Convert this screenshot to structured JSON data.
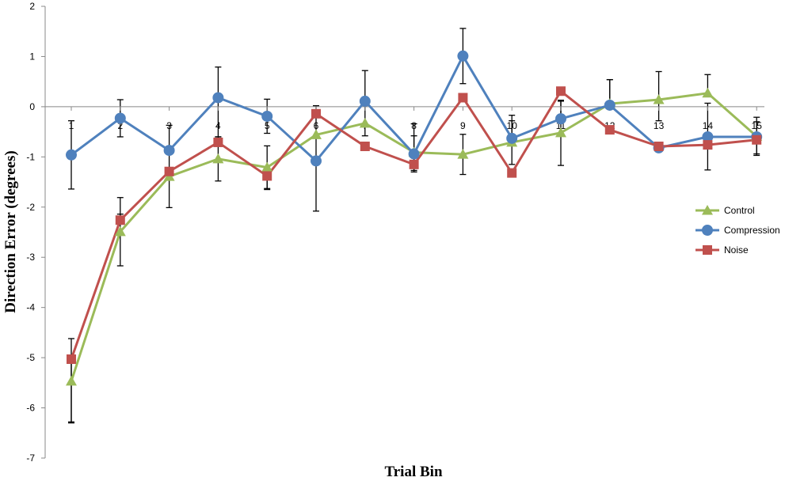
{
  "chart_data": {
    "type": "line",
    "title": "",
    "xlabel": "Trial Bin",
    "ylabel": "Direction Error (degrees)",
    "ylim": [
      -7,
      2
    ],
    "yticks": [
      2,
      1,
      0,
      -1,
      -2,
      -3,
      -4,
      -5,
      -6,
      -7
    ],
    "categories": [
      "1",
      "2",
      "3",
      "4",
      "5",
      "6",
      "7",
      "8",
      "9",
      "10",
      "11",
      "12",
      "13",
      "14",
      "15"
    ],
    "legend_position": "right",
    "grid": false,
    "series": [
      {
        "name": "Control",
        "color": "#9BBB59",
        "marker": "triangle",
        "values": [
          -5.47,
          -2.49,
          -1.39,
          -1.04,
          -1.21,
          -0.56,
          -0.33,
          -0.91,
          -0.95,
          -0.71,
          -0.52,
          0.06,
          0.14,
          0.27,
          -0.59
        ],
        "err_up": [
          0.5,
          0.35,
          0.6,
          0.44,
          0.43,
          0.58,
          0.48,
          0.57,
          0.4,
          0.43,
          0.63,
          0.48,
          0.56,
          0.37,
          0.29
        ],
        "err_down": [
          0.83,
          0.68,
          0.62,
          0.44,
          0.44,
          1.52,
          0.25,
          0.36,
          0.4,
          0.44,
          0.65,
          0.08,
          0.42,
          0.0,
          0.38
        ]
      },
      {
        "name": "Compression",
        "color": "#4F81BD",
        "marker": "circle",
        "values": [
          -0.96,
          -0.23,
          -0.87,
          0.18,
          -0.19,
          -1.08,
          0.11,
          -0.94,
          1.01,
          -0.63,
          -0.24,
          0.03,
          -0.82,
          -0.6,
          -0.6
        ],
        "err_up": [
          0.68,
          0.37,
          0.5,
          0.61,
          0.34,
          0.0,
          0.61,
          0.36,
          0.55,
          0.46,
          0.37,
          0.51,
          0.0,
          0.67,
          0.39
        ],
        "err_down": [
          0.68,
          0.37,
          0.0,
          0.78,
          0.34,
          0.0,
          0.0,
          0.36,
          0.55,
          0.0,
          0.0,
          0.0,
          0.0,
          0.0,
          0.34
        ]
      },
      {
        "name": "Noise",
        "color": "#C0504D",
        "marker": "square",
        "values": [
          -5.03,
          -2.26,
          -1.29,
          -0.71,
          -1.38,
          -0.14,
          -0.79,
          -1.15,
          0.18,
          -1.32,
          0.31,
          -0.46,
          -0.79,
          -0.76,
          -0.66
        ],
        "err_up": [
          0.41,
          0.45,
          0.0,
          0.0,
          0.0,
          0.0,
          0.0,
          0.0,
          0.0,
          0.0,
          0.0,
          0.0,
          0.0,
          0.0,
          0.0
        ],
        "err_down": [
          1.25,
          0.0,
          0.0,
          0.0,
          0.25,
          0.0,
          0.0,
          0.0,
          0.0,
          0.0,
          0.0,
          0.0,
          0.0,
          0.5,
          0.0
        ]
      }
    ]
  }
}
